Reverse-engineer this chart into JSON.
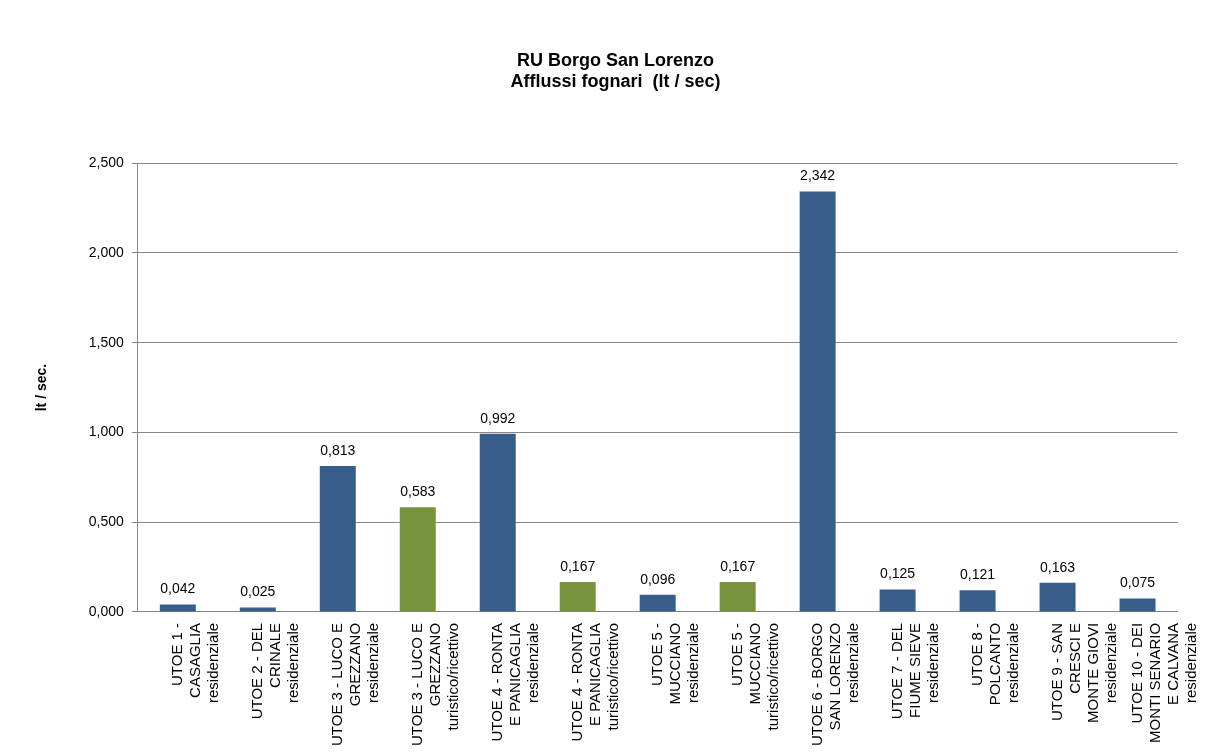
{
  "chart_data": {
    "type": "bar",
    "title": "RU Borgo San Lorenzo",
    "subtitle": "Afflussi fognari  (lt / sec)",
    "ylabel": "lt / sec.",
    "categories": [
      "UTOE 1 - CASAGLIA residenziale",
      "UTOE 2 - DEL CRINALE residenziale",
      "UTOE 3 - LUCO E GREZZANO residenziale",
      "UTOE 3 - LUCO E GREZZANO turistico/ricettivo",
      "UTOE 4 - RONTA E PANICAGLIA residenziale",
      "UTOE 4 - RONTA E PANICAGLIA turistico/ricettivo",
      "UTOE 5 - MUCCIANO residenziale",
      "UTOE 5 - MUCCIANO turistico/ricettivo",
      "UTOE 6 - BORGO SAN LORENZO residenziale",
      "UTOE 7 - DEL FIUME SIEVE residenziale",
      "UTOE 8 - POLCANTO residenziale",
      "UTOE 9 - SAN CRESCI E MONTE GIOVI residenziale",
      "UTOE 10 - DEI MONTI SENARIO E CALVANA residenziale"
    ],
    "values": [
      0.042,
      0.025,
      0.813,
      0.583,
      0.992,
      0.167,
      0.096,
      0.167,
      2.342,
      0.125,
      0.121,
      0.163,
      0.075
    ],
    "value_labels": [
      "0,042",
      "0,025",
      "0,813",
      "0,583",
      "0,992",
      "0,167",
      "0,096",
      "0,167",
      "2,342",
      "0,125",
      "0,121",
      "0,163",
      "0,075"
    ],
    "colors": [
      "#385d8a",
      "#385d8a",
      "#385d8a",
      "#77933c",
      "#385d8a",
      "#77933c",
      "#385d8a",
      "#77933c",
      "#385d8a",
      "#385d8a",
      "#385d8a",
      "#385d8a",
      "#385d8a"
    ],
    "ylim": [
      0,
      2.5
    ],
    "yticks": [
      {
        "value": 0,
        "label": "0,000"
      },
      {
        "value": 0.5,
        "label": "0,500"
      },
      {
        "value": 1,
        "label": "1,000"
      },
      {
        "value": 1.5,
        "label": "1,500"
      },
      {
        "value": 2,
        "label": "2,000"
      },
      {
        "value": 2.5,
        "label": "2,500"
      }
    ],
    "grid": "y",
    "legend": false
  }
}
